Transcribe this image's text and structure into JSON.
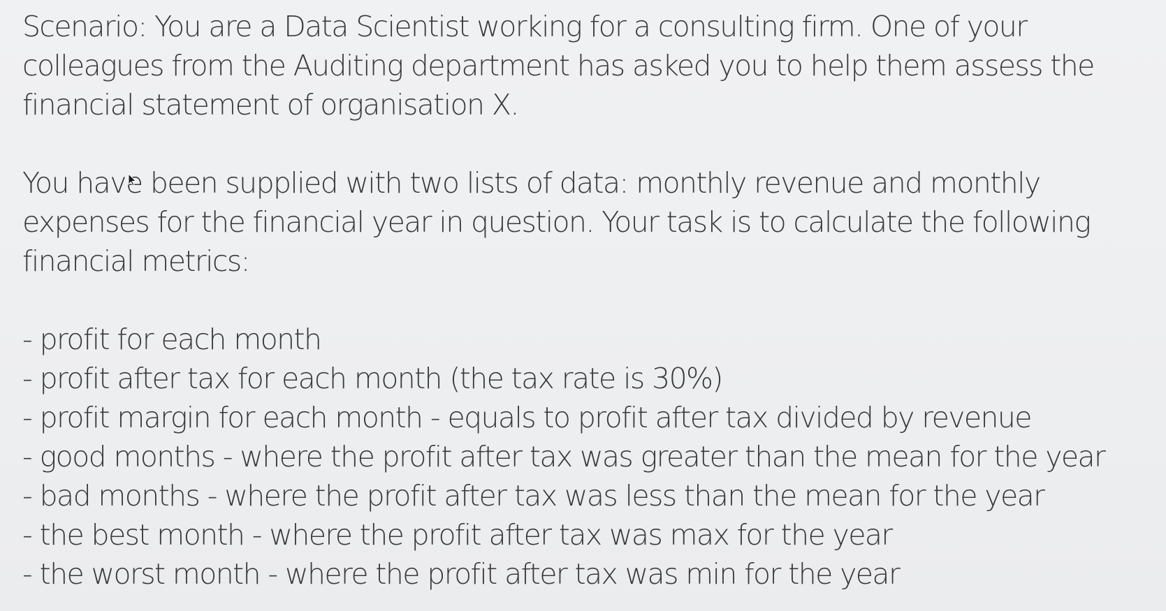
{
  "scenario": {
    "lines": [
      "Scenario: You are a Data Scientist working for a consulting firm. One of your",
      "colleagues from the Auditing department has asked you to help them assess the",
      "financial statement of organisation X."
    ]
  },
  "task": {
    "lines": [
      "You have been supplied with two lists of data: monthly revenue and monthly",
      "expenses for the financial year in question. Your task is to calculate the following",
      "financial metrics:"
    ]
  },
  "metrics": [
    "- profit for each month",
    "- profit after tax for each month (the tax rate is 30%)",
    "- profit margin for each month - equals to profit after tax divided by revenue",
    "- good months - where the profit after tax was greater than the mean for the year",
    "- bad months - where the profit after tax was less than the mean for the year",
    "- the best month - where the profit after tax was max for the year",
    "- the worst month - where the profit after tax was min for the year"
  ],
  "icons": {
    "cursor": "mouse-pointer-icon"
  }
}
